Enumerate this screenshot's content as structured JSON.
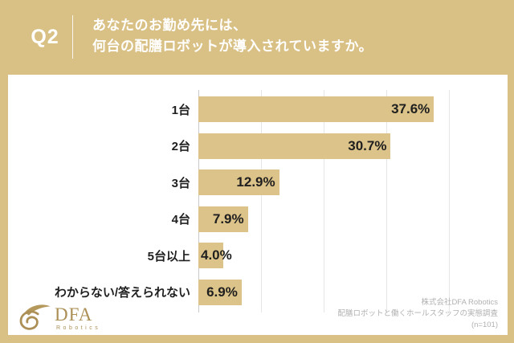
{
  "header": {
    "question_number": "Q2",
    "title_line1": "あなたのお勤め先には、",
    "title_line2": "何台の配膳ロボットが導入されていますか。"
  },
  "chart_data": {
    "type": "bar",
    "orientation": "horizontal",
    "title": "あなたのお勤め先には、何台の配膳ロボットが導入されていますか。",
    "categories": [
      "1台",
      "2台",
      "3台",
      "4台",
      "5台以上",
      "わからない/答えられない"
    ],
    "values": [
      37.6,
      30.7,
      12.9,
      7.9,
      4.0,
      6.9
    ],
    "value_labels": [
      "37.6%",
      "30.7%",
      "12.9%",
      "7.9%",
      "4.0%",
      "6.9%"
    ],
    "xlim": [
      0,
      50
    ],
    "gridline_interval_pct": 10,
    "grid": true,
    "legend": false,
    "bar_color": "#dcc389"
  },
  "footer": {
    "logo_main": "DFA",
    "logo_sub": "Robotics",
    "source_line1": "株式会社DFA Robotics",
    "source_line2": "配膳ロボットと働くホールスタッフの実態調査",
    "source_line3": "(n=101)"
  },
  "colors": {
    "background": "#d9c085",
    "panel": "#ffffff",
    "bar": "#dcc389",
    "header_text": "#ffffff",
    "label_text": "#1f1f1f",
    "source_text": "#b1b1b1",
    "logo_gold": "#ab8f55",
    "axis_line": "#c9c9c9",
    "gridline": "#e6e6e6"
  }
}
